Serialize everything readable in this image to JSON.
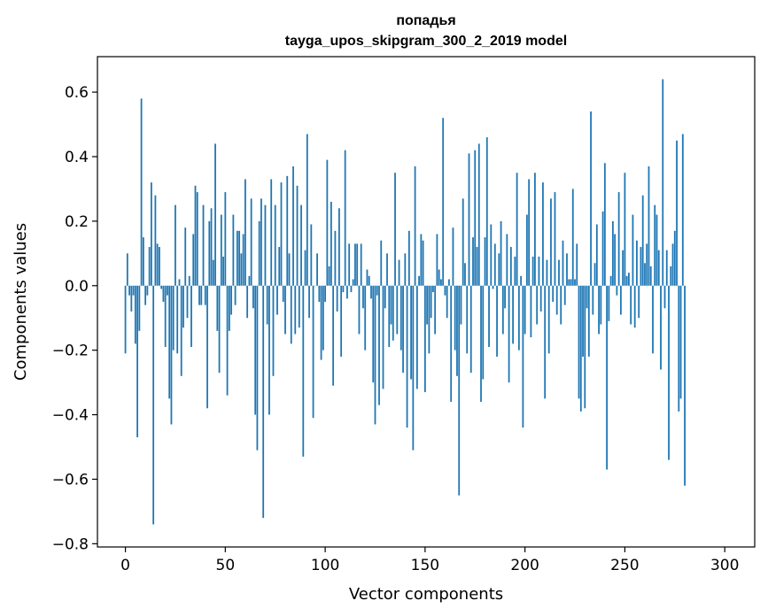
{
  "chart_data": {
    "type": "bar",
    "title": "попадья",
    "subtitle": "tayga_upos_skipgram_300_2_2019 model",
    "xlabel": "Vector components",
    "ylabel": "Components values",
    "xlim": [
      -14,
      315
    ],
    "ylim": [
      -0.81,
      0.71
    ],
    "xticks": [
      0,
      50,
      100,
      150,
      200,
      250,
      300
    ],
    "xtick_labels": [
      "0",
      "50",
      "100",
      "150",
      "200",
      "250",
      "300"
    ],
    "yticks": [
      -0.8,
      -0.6,
      -0.4,
      -0.2,
      0.0,
      0.2,
      0.4,
      0.6
    ],
    "ytick_labels": [
      "−0.8",
      "−0.6",
      "−0.4",
      "−0.2",
      "0.0",
      "0.2",
      "0.4",
      "0.6"
    ],
    "grid": false,
    "bar_color": "#1f77b4",
    "series": [
      {
        "values": [
          -0.21,
          0.1,
          -0.03,
          -0.08,
          -0.03,
          -0.18,
          -0.47,
          -0.14,
          0.58,
          0.15,
          -0.06,
          -0.03,
          0.12,
          0.32,
          -0.74,
          0.28,
          0.13,
          0.12,
          -0.01,
          -0.05,
          -0.19,
          -0.03,
          -0.35,
          -0.43,
          -0.2,
          0.25,
          -0.21,
          0.02,
          -0.28,
          -0.13,
          0.18,
          -0.1,
          0.03,
          -0.19,
          0.16,
          0.31,
          0.29,
          -0.06,
          -0.06,
          0.25,
          -0.06,
          -0.38,
          0.2,
          0.24,
          0.08,
          0.44,
          -0.14,
          -0.27,
          0.22,
          0.09,
          0.29,
          -0.34,
          -0.14,
          -0.09,
          0.22,
          -0.06,
          0.17,
          0.17,
          0.1,
          0.16,
          0.33,
          -0.1,
          0.03,
          0.27,
          -0.07,
          -0.4,
          -0.51,
          0.2,
          0.27,
          -0.72,
          0.25,
          -0.12,
          -0.4,
          0.33,
          -0.28,
          0.25,
          -0.09,
          0.12,
          0.32,
          -0.05,
          -0.15,
          0.34,
          0.1,
          -0.18,
          0.37,
          -0.15,
          0.31,
          -0.13,
          0.25,
          -0.53,
          0.11,
          0.47,
          -0.1,
          0.19,
          -0.41,
          0.0,
          0.1,
          -0.05,
          -0.23,
          -0.2,
          -0.05,
          0.39,
          0.06,
          0.26,
          -0.31,
          0.17,
          -0.08,
          0.24,
          -0.22,
          -0.02,
          0.42,
          -0.04,
          0.13,
          -0.02,
          0.02,
          0.13,
          0.13,
          -0.15,
          0.13,
          -0.07,
          -0.2,
          0.05,
          0.03,
          -0.04,
          -0.3,
          -0.43,
          -0.03,
          -0.37,
          0.14,
          -0.32,
          -0.07,
          0.1,
          -0.19,
          -0.12,
          -0.17,
          0.35,
          -0.15,
          0.08,
          -0.2,
          -0.27,
          0.1,
          -0.44,
          0.17,
          -0.29,
          -0.51,
          0.37,
          -0.32,
          0.03,
          0.16,
          0.14,
          -0.33,
          -0.12,
          -0.21,
          -0.1,
          -0.02,
          -0.15,
          0.16,
          0.05,
          0.02,
          0.52,
          -0.03,
          -0.1,
          0.02,
          -0.36,
          0.18,
          -0.2,
          -0.28,
          -0.65,
          -0.12,
          0.27,
          0.07,
          -0.21,
          0.41,
          -0.27,
          0.15,
          0.42,
          0.12,
          0.44,
          -0.36,
          -0.29,
          0.15,
          0.46,
          -0.19,
          0.19,
          -0.01,
          0.13,
          -0.22,
          0.1,
          0.2,
          -0.15,
          -0.07,
          0.16,
          -0.3,
          0.12,
          -0.18,
          0.09,
          0.35,
          -0.2,
          0.03,
          -0.44,
          -0.15,
          0.22,
          0.33,
          -0.16,
          0.09,
          0.35,
          -0.12,
          0.09,
          -0.08,
          0.32,
          -0.35,
          0.08,
          -0.21,
          0.27,
          -0.05,
          0.29,
          -0.09,
          0.08,
          -0.12,
          0.14,
          -0.06,
          0.1,
          0.02,
          0.02,
          0.3,
          0.02,
          0.13,
          -0.35,
          -0.39,
          -0.22,
          -0.38,
          -0.07,
          -0.22,
          0.54,
          -0.09,
          0.07,
          0.19,
          -0.15,
          -0.12,
          0.23,
          0.38,
          -0.57,
          -0.11,
          0.03,
          0.2,
          0.16,
          -0.03,
          0.29,
          -0.09,
          0.11,
          0.35,
          0.03,
          0.04,
          -0.12,
          0.22,
          -0.13,
          0.14,
          -0.1,
          0.12,
          0.28,
          0.07,
          0.13,
          0.37,
          0.06,
          -0.21,
          0.25,
          0.22,
          0.11,
          -0.26,
          0.64,
          -0.07,
          0.11,
          -0.54,
          0.06,
          0.13,
          0.17,
          0.45,
          -0.39,
          -0.35,
          0.47,
          -0.62
        ]
      }
    ]
  }
}
